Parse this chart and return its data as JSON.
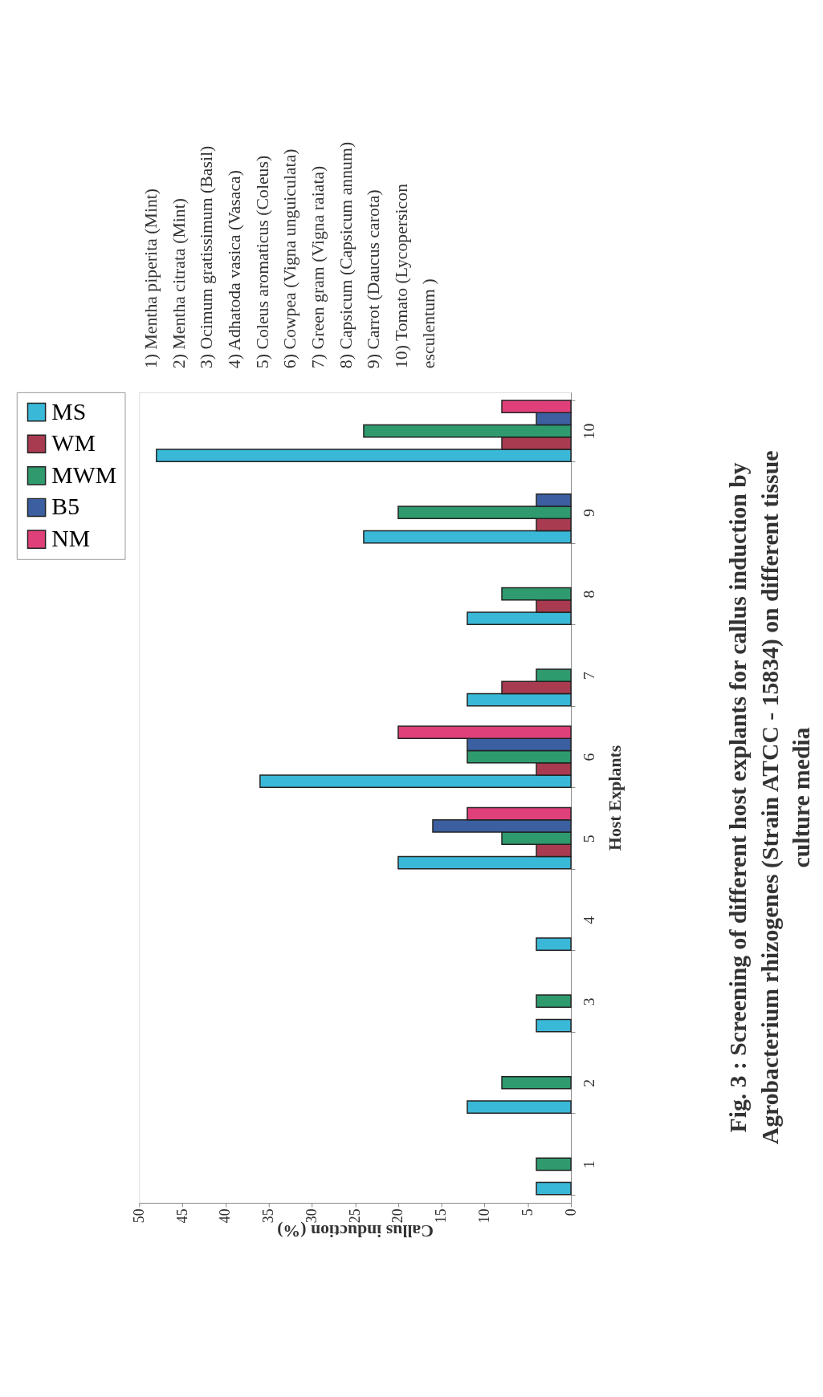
{
  "chart_data": {
    "type": "bar",
    "orientation": "horizontal",
    "title": "Fig. 3 : Screening of different host explants for callus induction by\nAgrobacterium rhizogenes (Strain ATCC - 15834) on different tissue\nculture media",
    "xlabel": "Callus induction (%)",
    "ylabel": "Host Explants",
    "categories": [
      "10",
      "9",
      "8",
      "7",
      "6",
      "5",
      "4",
      "3",
      "2",
      "1"
    ],
    "series": [
      {
        "name": "MS",
        "color": "#3ab8d8",
        "values": [
          48,
          24,
          12,
          12,
          36,
          20,
          4,
          4,
          12,
          4
        ]
      },
      {
        "name": "WM",
        "color": "#a83b50",
        "values": [
          8,
          4,
          4,
          8,
          4,
          4,
          null,
          null,
          null,
          null
        ]
      },
      {
        "name": "MWM",
        "color": "#2e9a6e",
        "values": [
          24,
          20,
          8,
          4,
          12,
          8,
          null,
          4,
          8,
          4
        ]
      },
      {
        "name": "B5",
        "color": "#3b5fa0",
        "values": [
          4,
          4,
          null,
          null,
          12,
          16,
          null,
          null,
          null,
          null
        ]
      },
      {
        "name": "NM",
        "color": "#e0407a",
        "values": [
          8,
          null,
          null,
          null,
          20,
          12,
          null,
          null,
          null,
          null
        ]
      }
    ],
    "xlim": [
      50,
      0
    ],
    "xticks": [
      50,
      45,
      40,
      35,
      30,
      25,
      20,
      15,
      10,
      5,
      0
    ],
    "grid": false,
    "legend": "left",
    "annotations": [
      "1) Mentha piperita (Mint)",
      "2) Mentha citrata (Mint)",
      "3) Ocimum gratissimum (Basil)",
      "4) Adhatoda vasica (Vasaca)",
      "5) Coleus aromaticus (Coleus)",
      "6) Cowpea (Vigna unguiculata)",
      "7) Green gram (Vigna raiata)",
      "8) Capsicum (Capsicum annum)",
      "9) Carrot (Daucus carota)",
      "10) Tomato (Lycopersicon\n     esculentum )"
    ]
  }
}
